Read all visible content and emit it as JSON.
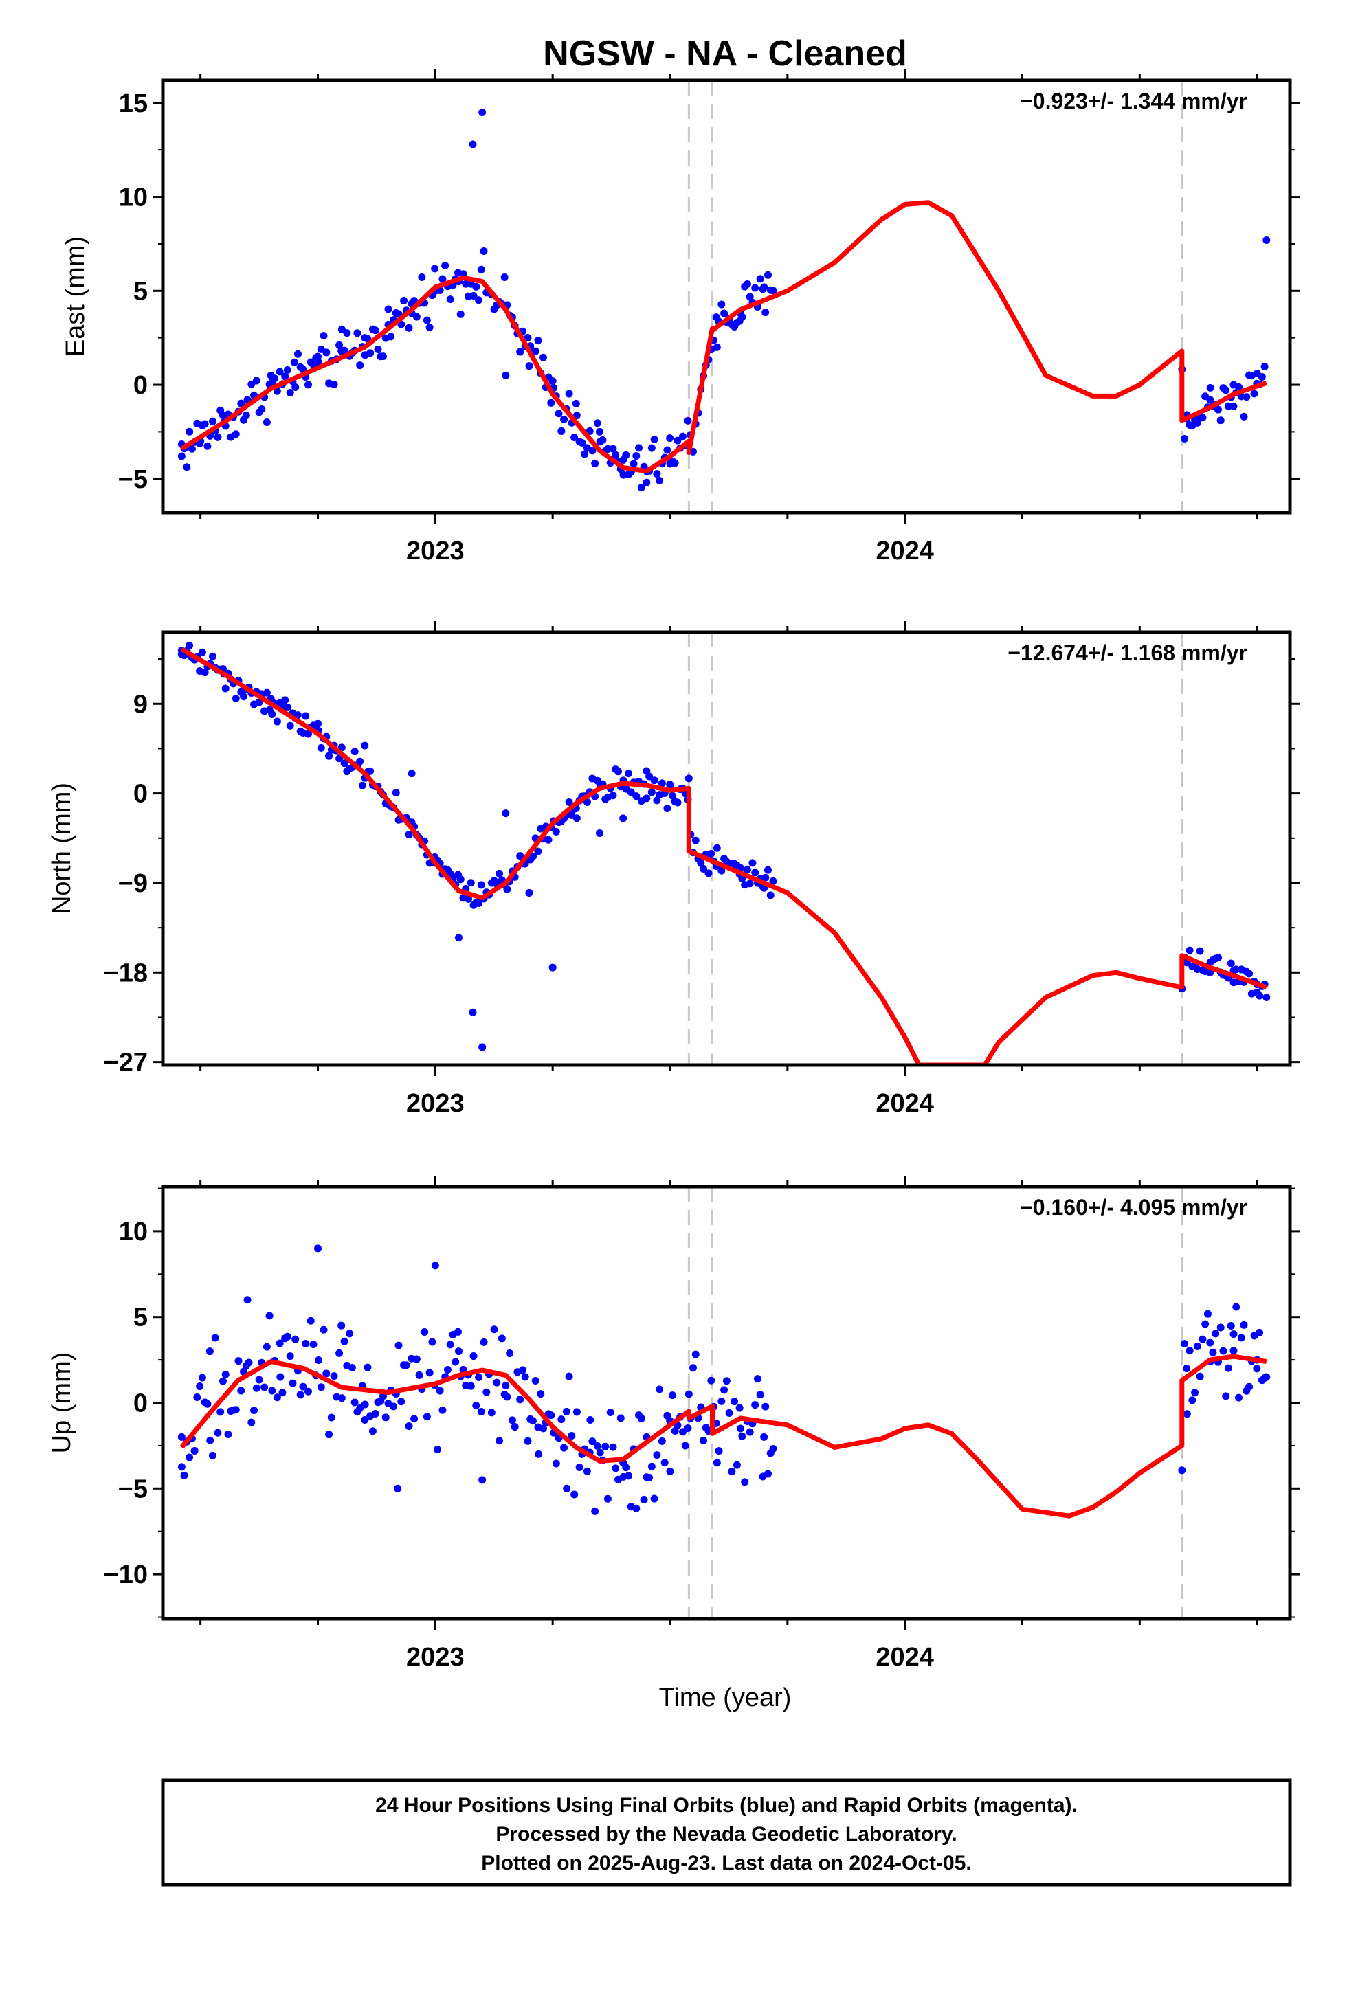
{
  "title": "NGSW  - NA - Cleaned",
  "xlabel": "Time (year)",
  "footer": {
    "lines": [
      "24 Hour Positions Using Final Orbits (blue) and Rapid Orbits (magenta).",
      "Processed by the Nevada Geodetic Laboratory.",
      "Plotted on 2025-Aug-23. Last data on 2024-Oct-05."
    ]
  },
  "colors": {
    "points": "#0000ff",
    "fit": "#ff0000",
    "breaks": "#c8c8c8",
    "frame": "#000000"
  },
  "chart_data": [
    {
      "type": "scatter",
      "ylabel": "East (mm)",
      "rate_text": "-0.923+/- 1.344 mm/yr",
      "xlim": [
        2022.42,
        2024.82
      ],
      "ylim": [
        -6.8,
        16.2
      ],
      "yticks": [
        15,
        10,
        5,
        0,
        -5
      ],
      "xticks": [
        2023,
        2024
      ],
      "breaks": [
        2023.54,
        2023.59,
        2024.59
      ],
      "data_segments": [
        {
          "x": [
            2022.46,
            2023.59
          ],
          "y_start": -3.4
        },
        {
          "x": [
            2023.59,
            2023.72
          ],
          "y_start": 2.0
        },
        {
          "x": [
            2024.59,
            2024.77
          ],
          "y_start": -1.5
        }
      ],
      "series": [
        {
          "kind": "scatter",
          "color": "#0000ff",
          "x": [
            2022.46,
            2022.5,
            2022.55,
            2022.6,
            2022.65,
            2022.7,
            2022.75,
            2022.8,
            2022.85,
            2022.9,
            2022.95,
            2023.0,
            2023.05,
            2023.08,
            2023.1,
            2023.15,
            2023.2,
            2023.25,
            2023.3,
            2023.35,
            2023.4,
            2023.45,
            2023.5,
            2023.54,
            2023.6,
            2023.65,
            2023.7,
            2024.6,
            2024.65,
            2024.7,
            2024.75,
            2024.77
          ],
          "y": [
            -3.8,
            -3.0,
            -2.0,
            -0.8,
            0.5,
            1.2,
            1.5,
            1.8,
            2.5,
            3.2,
            3.8,
            5.0,
            5.5,
            12.8,
            14.5,
            0.5,
            1.0,
            0.2,
            -1.0,
            -2.5,
            -4.0,
            -4.6,
            -4.2,
            -3.2,
            2.0,
            3.8,
            5.2,
            -1.8,
            -0.8,
            0.0,
            0.6,
            7.7
          ]
        },
        {
          "kind": "line",
          "name": "fit",
          "color": "#ff0000",
          "x": [
            2022.46,
            2022.55,
            2022.65,
            2022.75,
            2022.85,
            2022.95,
            2023.0,
            2023.06,
            2023.1,
            2023.15,
            2023.2,
            2023.25,
            2023.3,
            2023.35,
            2023.4,
            2023.45,
            2023.5,
            2023.54,
            2023.54,
            2023.59,
            2023.59,
            2023.65,
            2023.75,
            2023.85,
            2023.95,
            2024.0,
            2024.05,
            2024.1,
            2024.2,
            2024.3,
            2024.4,
            2024.45,
            2024.5,
            2024.59,
            2024.59,
            2024.65,
            2024.7,
            2024.77
          ],
          "y": [
            -3.4,
            -2.0,
            -0.2,
            0.9,
            2.0,
            4.0,
            5.2,
            5.7,
            5.5,
            4.0,
            1.8,
            -0.5,
            -2.0,
            -3.5,
            -4.4,
            -4.6,
            -3.8,
            -3.0,
            -3.6,
            3.0,
            2.9,
            4.0,
            5.0,
            6.5,
            8.8,
            9.6,
            9.7,
            9.0,
            5.0,
            0.5,
            -0.6,
            -0.6,
            0.0,
            1.8,
            -1.9,
            -1.2,
            -0.5,
            0.1
          ]
        }
      ]
    },
    {
      "type": "scatter",
      "ylabel": "North (mm)",
      "rate_text": "-12.674+/- 1.168 mm/yr",
      "xlim": [
        2022.42,
        2024.82
      ],
      "ylim": [
        -27.3,
        16.2
      ],
      "yticks": [
        9,
        0,
        -9,
        -18,
        -27
      ],
      "xticks": [
        2023,
        2024
      ],
      "breaks": [
        2023.54,
        2023.59,
        2024.59
      ],
      "series": [
        {
          "kind": "scatter",
          "color": "#0000ff",
          "x": [
            2022.46,
            2022.55,
            2022.65,
            2022.75,
            2022.85,
            2022.95,
            2023.0,
            2023.05,
            2023.08,
            2023.1,
            2023.15,
            2023.2,
            2023.25,
            2023.3,
            2023.35,
            2023.4,
            2023.45,
            2023.5,
            2023.54,
            2023.6,
            2023.65,
            2023.7,
            2024.6,
            2024.65,
            2024.7,
            2024.75,
            2024.77
          ],
          "y": [
            14.0,
            12.0,
            9.5,
            7.0,
            4.8,
            2.0,
            -7.0,
            -14.5,
            -22.0,
            -25.5,
            -2.0,
            -10.0,
            -17.5,
            -1.5,
            -4.0,
            -2.5,
            -0.5,
            0.8,
            1.5,
            -5.5,
            -7.5,
            -9.5,
            -17.0,
            -18.0,
            -19.0,
            -20.0,
            -20.5
          ]
        },
        {
          "kind": "line",
          "name": "fit",
          "color": "#ff0000",
          "x": [
            2022.46,
            2022.55,
            2022.65,
            2022.75,
            2022.85,
            2022.95,
            2023.0,
            2023.05,
            2023.1,
            2023.15,
            2023.2,
            2023.25,
            2023.3,
            2023.35,
            2023.4,
            2023.45,
            2023.5,
            2023.54,
            2023.54,
            2023.59,
            2023.65,
            2023.75,
            2023.85,
            2023.95,
            2024.0,
            2024.03,
            2024.17,
            2024.2,
            2024.3,
            2024.4,
            2024.45,
            2024.5,
            2024.59,
            2024.59,
            2024.65,
            2024.7,
            2024.77
          ],
          "y": [
            14.5,
            12.0,
            9.0,
            6.0,
            2.0,
            -3.5,
            -7.0,
            -9.8,
            -10.5,
            -9.0,
            -6.0,
            -3.0,
            -1.0,
            0.5,
            1.0,
            0.8,
            0.3,
            0.5,
            -5.8,
            -6.8,
            -8.0,
            -10.0,
            -14.0,
            -20.5,
            -24.5,
            -27.3,
            -27.3,
            -25.0,
            -20.5,
            -18.3,
            -18.0,
            -18.6,
            -19.5,
            -16.3,
            -17.5,
            -18.3,
            -19.5
          ]
        }
      ]
    },
    {
      "type": "scatter",
      "ylabel": "Up (mm)",
      "rate_text": "-0.160+/- 4.095 mm/yr",
      "xlim": [
        2022.42,
        2024.82
      ],
      "ylim": [
        -12.6,
        12.6
      ],
      "yticks": [
        10,
        5,
        0,
        -5,
        -10
      ],
      "xticks": [
        2023,
        2024
      ],
      "breaks": [
        2023.54,
        2023.59,
        2024.59
      ],
      "series": [
        {
          "kind": "scatter",
          "color": "#0000ff",
          "x": [
            2022.46,
            2022.52,
            2022.6,
            2022.67,
            2022.75,
            2022.8,
            2022.85,
            2022.92,
            2023.0,
            2023.05,
            2023.1,
            2023.15,
            2023.22,
            2023.28,
            2023.33,
            2023.4,
            2023.45,
            2023.5,
            2023.54,
            2023.6,
            2023.65,
            2023.7,
            2024.6,
            2024.65,
            2024.7,
            2024.75,
            2024.77
          ],
          "y": [
            -2.0,
            3.0,
            6.0,
            1.5,
            9.0,
            4.5,
            -1.0,
            -5.0,
            8.0,
            3.0,
            -4.5,
            1.0,
            -3.0,
            -5.0,
            -1.0,
            -3.5,
            -2.0,
            -4.0,
            0.5,
            -3.5,
            -1.5,
            -2.0,
            2.0,
            3.5,
            4.0,
            2.5,
            1.5
          ]
        },
        {
          "kind": "line",
          "name": "fit",
          "color": "#ff0000",
          "x": [
            2022.46,
            2022.52,
            2022.58,
            2022.65,
            2022.72,
            2022.8,
            2022.9,
            2023.0,
            2023.05,
            2023.1,
            2023.15,
            2023.2,
            2023.25,
            2023.3,
            2023.35,
            2023.4,
            2023.45,
            2023.5,
            2023.54,
            2023.54,
            2023.59,
            2023.59,
            2023.65,
            2023.75,
            2023.85,
            2023.95,
            2024.0,
            2024.05,
            2024.1,
            2024.15,
            2024.25,
            2024.35,
            2024.4,
            2024.45,
            2024.5,
            2024.59,
            2024.59,
            2024.65,
            2024.7,
            2024.77
          ],
          "y": [
            -2.6,
            -0.6,
            1.3,
            2.4,
            2.0,
            0.9,
            0.6,
            1.1,
            1.6,
            1.9,
            1.6,
            0.2,
            -1.4,
            -2.6,
            -3.4,
            -3.3,
            -2.3,
            -1.3,
            -0.5,
            -0.9,
            -0.2,
            -1.8,
            -0.9,
            -1.3,
            -2.6,
            -2.1,
            -1.5,
            -1.3,
            -1.8,
            -3.2,
            -6.2,
            -6.6,
            -6.1,
            -5.2,
            -4.1,
            -2.5,
            1.3,
            2.5,
            2.7,
            2.4
          ]
        }
      ]
    }
  ]
}
